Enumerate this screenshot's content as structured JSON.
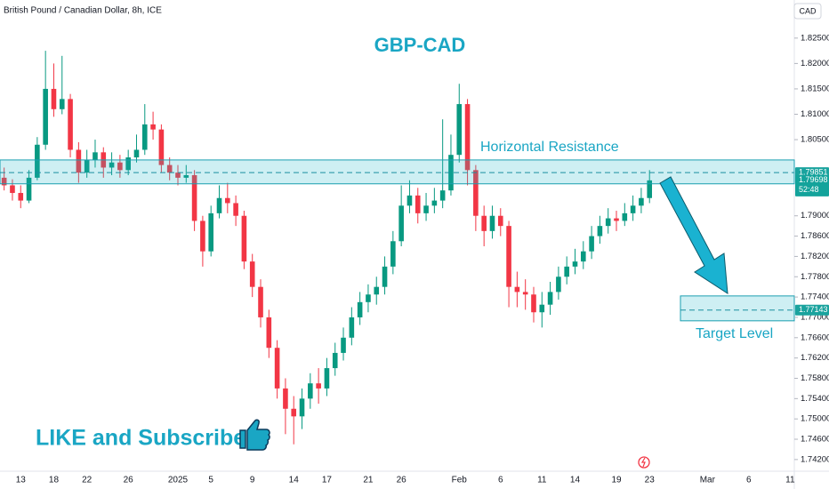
{
  "chart_data": {
    "type": "candlestick",
    "header": "British Pound / Canadian Dollar, 8h, ICE",
    "currency": "CAD",
    "title": "GBP-CAD",
    "promo": "LIKE and Subscribe",
    "countdown": "52:48",
    "up_color": "#089981",
    "down_color": "#f23645",
    "categories": [
      null,
      null,
      "13",
      null,
      null,
      null,
      "18",
      null,
      null,
      null,
      "22",
      null,
      null,
      null,
      null,
      "26",
      null,
      null,
      null,
      null,
      null,
      "2025",
      null,
      null,
      null,
      "5",
      null,
      null,
      null,
      null,
      "9",
      null,
      null,
      null,
      null,
      "14",
      null,
      null,
      null,
      "17",
      null,
      null,
      null,
      null,
      "21",
      null,
      null,
      null,
      "26",
      null,
      null,
      null,
      null,
      null,
      null,
      "Feb",
      null,
      null,
      null,
      null,
      "6",
      null,
      null,
      null,
      null,
      "11",
      null,
      null,
      null,
      "14",
      null,
      null,
      null,
      null,
      "19",
      null,
      null,
      null,
      "23",
      null,
      null,
      null,
      null,
      null,
      null,
      "Mar",
      null,
      null,
      null,
      null,
      "6",
      null,
      null,
      null,
      null,
      "11"
    ],
    "open": [
      1.7975,
      1.796,
      1.7945,
      1.793,
      1.7975,
      1.804,
      1.815,
      1.811,
      1.813,
      1.803,
      1.7985,
      1.801,
      1.8025,
      1.7995,
      1.8005,
      1.799,
      1.8015,
      1.803,
      1.808,
      1.807,
      1.8,
      1.7985,
      1.7975,
      1.798,
      1.789,
      1.783,
      1.7905,
      1.7935,
      1.7925,
      1.79,
      1.781,
      1.776,
      1.77,
      1.764,
      1.756,
      1.752,
      1.7505,
      1.754,
      1.757,
      1.756,
      1.76,
      1.763,
      1.766,
      1.77,
      1.773,
      1.7745,
      1.776,
      1.78,
      1.785,
      1.792,
      1.794,
      1.7905,
      1.792,
      1.793,
      1.795,
      1.802,
      1.812,
      1.799,
      1.79,
      1.787,
      1.79,
      1.788,
      1.776,
      1.775,
      1.7745,
      1.771,
      1.7725,
      1.775,
      1.778,
      1.78,
      1.781,
      1.783,
      1.786,
      1.788,
      1.7895,
      1.789,
      1.7905,
      1.792,
      1.7935,
      null,
      null,
      null,
      null,
      null,
      null,
      null,
      null,
      null,
      null,
      null,
      null,
      null,
      null,
      null,
      null,
      null
    ],
    "high": [
      1.7995,
      1.7972,
      1.796,
      1.799,
      1.8055,
      1.8225,
      1.82,
      1.8215,
      1.814,
      1.8045,
      1.803,
      1.805,
      1.8035,
      1.8025,
      1.802,
      1.803,
      1.806,
      1.812,
      1.8105,
      1.808,
      1.8015,
      1.8,
      1.8,
      1.799,
      1.79,
      1.792,
      1.796,
      1.7965,
      1.794,
      1.791,
      1.7825,
      1.7775,
      1.7715,
      1.7655,
      1.758,
      1.7545,
      1.756,
      1.759,
      1.76,
      1.762,
      1.765,
      1.768,
      1.772,
      1.775,
      1.7765,
      1.778,
      1.782,
      1.787,
      1.796,
      1.797,
      1.7955,
      1.7945,
      1.7955,
      1.809,
      1.806,
      1.816,
      1.813,
      1.8,
      1.792,
      1.792,
      1.7915,
      1.789,
      1.779,
      1.7775,
      1.776,
      1.775,
      1.777,
      1.78,
      1.782,
      1.7835,
      1.785,
      1.788,
      1.79,
      1.7915,
      1.791,
      1.7925,
      1.794,
      1.7955,
      1.799,
      null,
      null,
      null,
      null,
      null,
      null,
      null,
      null,
      null,
      null,
      null,
      null,
      null,
      null,
      null,
      null,
      null
    ],
    "low": [
      1.795,
      1.793,
      1.7915,
      1.7925,
      1.797,
      1.803,
      1.8095,
      1.81,
      1.8015,
      1.7965,
      1.7975,
      1.7995,
      1.7975,
      1.798,
      1.7975,
      1.798,
      1.8005,
      1.802,
      1.805,
      1.7985,
      1.797,
      1.796,
      1.7965,
      1.787,
      1.78,
      1.782,
      1.7895,
      1.7905,
      1.788,
      1.7795,
      1.774,
      1.768,
      1.762,
      1.754,
      1.747,
      1.745,
      1.748,
      1.752,
      1.753,
      1.7545,
      1.7585,
      1.7615,
      1.7645,
      1.7685,
      1.771,
      1.7725,
      1.7745,
      1.7785,
      1.784,
      1.7905,
      1.7885,
      1.789,
      1.7905,
      1.7915,
      1.794,
      1.8005,
      1.796,
      1.787,
      1.784,
      1.7855,
      1.786,
      1.772,
      1.772,
      1.7715,
      1.769,
      1.768,
      1.7705,
      1.7735,
      1.7765,
      1.7785,
      1.7795,
      1.7815,
      1.7845,
      1.7865,
      1.787,
      1.788,
      1.789,
      1.7905,
      1.7925,
      null,
      null,
      null,
      null,
      null,
      null,
      null,
      null,
      null,
      null,
      null,
      null,
      null,
      null,
      null,
      null,
      null
    ],
    "close": [
      1.796,
      1.7945,
      1.793,
      1.7975,
      1.804,
      1.815,
      1.811,
      1.813,
      1.803,
      1.7985,
      1.801,
      1.8025,
      1.7995,
      1.8005,
      1.799,
      1.8015,
      1.803,
      1.808,
      1.807,
      1.8,
      1.7985,
      1.7975,
      1.798,
      1.789,
      1.783,
      1.7905,
      1.7935,
      1.7925,
      1.79,
      1.781,
      1.776,
      1.77,
      1.764,
      1.756,
      1.752,
      1.7505,
      1.754,
      1.757,
      1.756,
      1.76,
      1.763,
      1.766,
      1.77,
      1.773,
      1.7745,
      1.776,
      1.78,
      1.785,
      1.792,
      1.794,
      1.7905,
      1.792,
      1.793,
      1.795,
      1.802,
      1.812,
      1.799,
      1.79,
      1.787,
      1.79,
      1.788,
      1.776,
      1.775,
      1.7745,
      1.771,
      1.7725,
      1.775,
      1.778,
      1.78,
      1.781,
      1.783,
      1.786,
      1.788,
      1.7895,
      1.789,
      1.7905,
      1.792,
      1.7935,
      1.79698,
      null,
      null,
      null,
      null,
      null,
      null,
      null,
      null,
      null,
      null,
      null,
      null,
      null,
      null,
      null,
      null,
      null
    ],
    "ylim": [
      1.7397,
      1.8325
    ],
    "yticks": [
      {
        "value": 1.825,
        "label": "1.82500"
      },
      {
        "value": 1.82,
        "label": "1.82000"
      },
      {
        "value": 1.815,
        "label": "1.81500"
      },
      {
        "value": 1.81,
        "label": "1.81000"
      },
      {
        "value": 1.805,
        "label": "1.80500"
      },
      {
        "value": 1.79,
        "label": "1.79000"
      },
      {
        "value": 1.786,
        "label": "1.78600"
      },
      {
        "value": 1.782,
        "label": "1.78200"
      },
      {
        "value": 1.778,
        "label": "1.77800"
      },
      {
        "value": 1.774,
        "label": "1.77400"
      },
      {
        "value": 1.77,
        "label": "1.77000"
      },
      {
        "value": 1.766,
        "label": "1.76600"
      },
      {
        "value": 1.762,
        "label": "1.76200"
      },
      {
        "value": 1.758,
        "label": "1.75800"
      },
      {
        "value": 1.754,
        "label": "1.75400"
      },
      {
        "value": 1.75,
        "label": "1.75000"
      },
      {
        "value": 1.746,
        "label": "1.74600"
      },
      {
        "value": 1.742,
        "label": "1.74200"
      }
    ],
    "resistance": {
      "label": "Horizontal Resistance",
      "high": 1.801,
      "low": 1.7963,
      "level": 1.79851
    },
    "target": {
      "label": "Target Level",
      "high": 1.77422,
      "low": 1.76932,
      "level": 1.77143
    }
  }
}
